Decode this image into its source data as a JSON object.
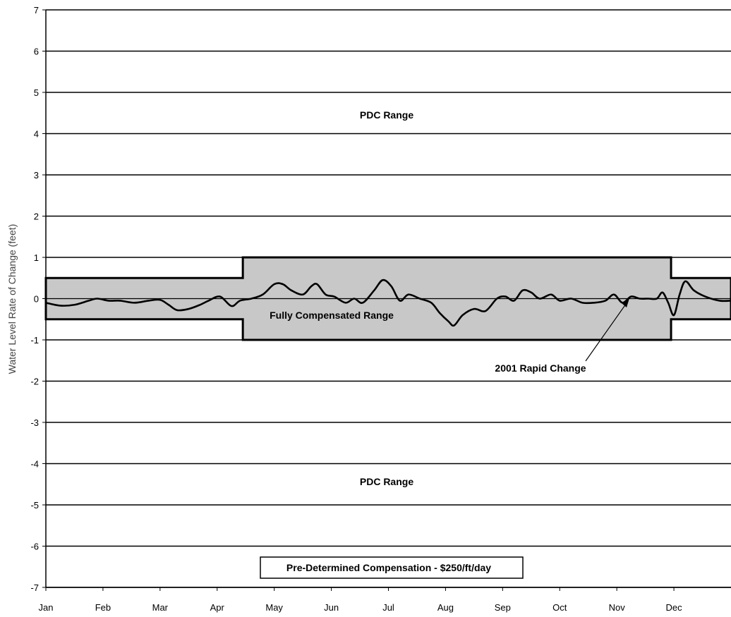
{
  "chart_data": {
    "type": "line",
    "ylabel": "Water Level Rate of Change (feet)",
    "xlabel": "",
    "title": "",
    "ylim": [
      -7,
      7
    ],
    "y_ticks": [
      "7",
      "6",
      "5",
      "4",
      "3",
      "2",
      "1",
      "0",
      "-1",
      "-2",
      "-3",
      "-4",
      "-5",
      "-6",
      "-7"
    ],
    "x_ticks": [
      "Jan",
      "Feb",
      "Mar",
      "Apr",
      "May",
      "Jun",
      "Jul",
      "Aug",
      "Sep",
      "Oct",
      "Nov",
      "Dec"
    ],
    "grid": "horizontal",
    "band": {
      "label": "Fully Compensated Range",
      "segments": [
        {
          "from_month": 0.0,
          "to_month": 3.45,
          "low": -0.5,
          "high": 0.5
        },
        {
          "from_month": 3.45,
          "to_month": 10.95,
          "low": -1.0,
          "high": 1.0
        },
        {
          "from_month": 10.95,
          "to_month": 12.0,
          "low": -0.5,
          "high": 0.5
        }
      ]
    },
    "series": [
      {
        "points": [
          [
            0.0,
            -0.1
          ],
          [
            0.25,
            -0.17
          ],
          [
            0.5,
            -0.15
          ],
          [
            0.75,
            -0.05
          ],
          [
            0.9,
            0.0
          ],
          [
            1.1,
            -0.05
          ],
          [
            1.3,
            -0.05
          ],
          [
            1.55,
            -0.1
          ],
          [
            1.8,
            -0.05
          ],
          [
            2.0,
            -0.03
          ],
          [
            2.15,
            -0.15
          ],
          [
            2.3,
            -0.28
          ],
          [
            2.5,
            -0.25
          ],
          [
            2.7,
            -0.15
          ],
          [
            2.85,
            -0.05
          ],
          [
            3.05,
            0.05
          ],
          [
            3.25,
            -0.18
          ],
          [
            3.4,
            -0.05
          ],
          [
            3.6,
            0.0
          ],
          [
            3.8,
            0.1
          ],
          [
            4.0,
            0.35
          ],
          [
            4.15,
            0.35
          ],
          [
            4.3,
            0.2
          ],
          [
            4.5,
            0.1
          ],
          [
            4.65,
            0.3
          ],
          [
            4.75,
            0.35
          ],
          [
            4.9,
            0.1
          ],
          [
            5.05,
            0.05
          ],
          [
            5.25,
            -0.1
          ],
          [
            5.4,
            0.0
          ],
          [
            5.55,
            -0.1
          ],
          [
            5.75,
            0.2
          ],
          [
            5.9,
            0.45
          ],
          [
            6.05,
            0.3
          ],
          [
            6.2,
            -0.05
          ],
          [
            6.35,
            0.1
          ],
          [
            6.55,
            0.0
          ],
          [
            6.75,
            -0.1
          ],
          [
            6.9,
            -0.35
          ],
          [
            7.05,
            -0.55
          ],
          [
            7.15,
            -0.65
          ],
          [
            7.3,
            -0.4
          ],
          [
            7.5,
            -0.25
          ],
          [
            7.7,
            -0.3
          ],
          [
            7.9,
            0.0
          ],
          [
            8.05,
            0.05
          ],
          [
            8.2,
            -0.05
          ],
          [
            8.35,
            0.2
          ],
          [
            8.5,
            0.15
          ],
          [
            8.65,
            0.0
          ],
          [
            8.85,
            0.1
          ],
          [
            9.0,
            -0.05
          ],
          [
            9.2,
            0.0
          ],
          [
            9.4,
            -0.1
          ],
          [
            9.6,
            -0.1
          ],
          [
            9.8,
            -0.05
          ],
          [
            9.95,
            0.1
          ],
          [
            10.1,
            -0.1
          ],
          [
            10.25,
            0.05
          ],
          [
            10.4,
            0.0
          ],
          [
            10.55,
            0.0
          ],
          [
            10.7,
            0.0
          ],
          [
            10.8,
            0.15
          ],
          [
            10.9,
            -0.1
          ],
          [
            11.0,
            -0.4
          ],
          [
            11.1,
            0.1
          ],
          [
            11.2,
            0.42
          ],
          [
            11.35,
            0.2
          ],
          [
            11.55,
            0.05
          ],
          [
            11.8,
            -0.05
          ],
          [
            12.0,
            -0.05
          ]
        ]
      }
    ],
    "annotations": {
      "pdc_upper": "PDC Range",
      "pdc_lower": "PDC Range",
      "rapid_change": "2001 Rapid Change",
      "compensation_box": "Pre-Determined Compensation - $250/ft/day"
    },
    "colors": {
      "band_fill": "#c8c8c8",
      "line": "#000000",
      "grid": "#000000"
    }
  }
}
